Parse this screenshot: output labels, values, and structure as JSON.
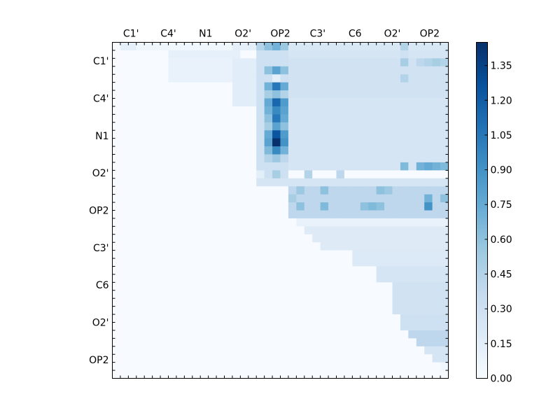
{
  "chart_data": {
    "type": "heatmap",
    "title": "",
    "xlabel": "",
    "ylabel": "",
    "n_cells": 42,
    "x_tick_labels": [
      "C1'",
      "C4'",
      "N1",
      "O2'",
      "OP2",
      "C3'",
      "C6",
      "O2'",
      "OP2"
    ],
    "y_tick_labels": [
      "C1'",
      "C4'",
      "N1",
      "O2'",
      "OP2",
      "C3'",
      "C6",
      "O2'",
      "OP2"
    ],
    "colorbar": {
      "min": 0.0,
      "max": 1.45,
      "ticks": [
        "0.00",
        "0.15",
        "0.30",
        "0.45",
        "0.60",
        "0.75",
        "0.90",
        "1.05",
        "1.20",
        "1.35"
      ],
      "colormap": "Blues",
      "stops": [
        "#f7fbff",
        "#deebf7",
        "#c6dbef",
        "#9ecae1",
        "#6baed6",
        "#4292c6",
        "#2171b5",
        "#08519c",
        "#08306b"
      ]
    },
    "blocks": [
      {
        "rows": [
          0,
          1
        ],
        "cols": [
          1,
          3
        ],
        "value": 0.12
      },
      {
        "rows": [
          0,
          1
        ],
        "cols": [
          3,
          7
        ],
        "value": 0.06
      },
      {
        "rows": [
          0,
          3
        ],
        "cols": [
          7,
          16
        ],
        "value": 0.05
      },
      {
        "rows": [
          0,
          1
        ],
        "cols": [
          15,
          18
        ],
        "value": 0.14
      },
      {
        "rows": [
          1,
          2
        ],
        "cols": [
          7,
          16
        ],
        "value": 0.12
      },
      {
        "rows": [
          2,
          5
        ],
        "cols": [
          7,
          16
        ],
        "value": 0.1
      },
      {
        "rows": [
          2,
          8
        ],
        "cols": [
          15,
          18
        ],
        "value": 0.16
      },
      {
        "rows": [
          0,
          16
        ],
        "cols": [
          18,
          22
        ],
        "value": 0.3
      },
      {
        "rows": [
          0,
          1
        ],
        "cols": [
          18,
          22
        ],
        "value": 0.45
      },
      {
        "rows": [
          0,
          1
        ],
        "cols": [
          22,
          42
        ],
        "value": 0.22
      },
      {
        "rows": [
          1,
          2
        ],
        "cols": [
          22,
          42
        ],
        "value": 0.25
      },
      {
        "rows": [
          2,
          7
        ],
        "cols": [
          22,
          42
        ],
        "value": 0.28
      },
      {
        "rows": [
          7,
          16
        ],
        "cols": [
          22,
          42
        ],
        "value": 0.25
      },
      {
        "rows": [
          15,
          17
        ],
        "cols": [
          18,
          22
        ],
        "value": 0.3
      },
      {
        "rows": [
          17,
          18
        ],
        "cols": [
          18,
          42
        ],
        "value": 0.25
      },
      {
        "rows": [
          18,
          22
        ],
        "cols": [
          22,
          42
        ],
        "value": 0.4
      },
      {
        "rows": [
          22,
          23
        ],
        "cols": [
          22,
          42
        ],
        "value": 0.1
      },
      {
        "rows": [
          23,
          26
        ],
        "cols": [
          24,
          42
        ],
        "value": 0.18
      },
      {
        "rows": [
          26,
          28
        ],
        "cols": [
          30,
          42
        ],
        "value": 0.2
      },
      {
        "rows": [
          28,
          30
        ],
        "cols": [
          33,
          42
        ],
        "value": 0.25
      },
      {
        "rows": [
          30,
          34
        ],
        "cols": [
          35,
          42
        ],
        "value": 0.28
      },
      {
        "rows": [
          34,
          36
        ],
        "cols": [
          36,
          42
        ],
        "value": 0.3
      },
      {
        "rows": [
          36,
          38
        ],
        "cols": [
          37,
          42
        ],
        "value": 0.4
      },
      {
        "rows": [
          38,
          40
        ],
        "cols": [
          38,
          42
        ],
        "value": 0.25
      },
      {
        "rows": [
          40,
          42
        ],
        "cols": [
          40,
          42
        ],
        "value": 0.05
      }
    ],
    "cells": [
      {
        "r": 0,
        "c": 19,
        "v": 0.6
      },
      {
        "r": 0,
        "c": 20,
        "v": 0.7
      },
      {
        "r": 0,
        "c": 21,
        "v": 0.55
      },
      {
        "r": 0,
        "c": 36,
        "v": 0.45
      },
      {
        "r": 1,
        "c": 36,
        "v": 0.3
      },
      {
        "r": 2,
        "c": 36,
        "v": 0.5
      },
      {
        "r": 2,
        "c": 38,
        "v": 0.4
      },
      {
        "r": 2,
        "c": 39,
        "v": 0.45
      },
      {
        "r": 2,
        "c": 40,
        "v": 0.5
      },
      {
        "r": 2,
        "c": 41,
        "v": 0.45
      },
      {
        "r": 3,
        "c": 19,
        "v": 0.6
      },
      {
        "r": 3,
        "c": 20,
        "v": 0.8
      },
      {
        "r": 3,
        "c": 21,
        "v": 0.6
      },
      {
        "r": 4,
        "c": 20,
        "v": 0.15
      },
      {
        "r": 4,
        "c": 36,
        "v": 0.45
      },
      {
        "r": 5,
        "c": 19,
        "v": 0.7
      },
      {
        "r": 5,
        "c": 20,
        "v": 1.05
      },
      {
        "r": 5,
        "c": 21,
        "v": 0.75
      },
      {
        "r": 6,
        "c": 19,
        "v": 0.5
      },
      {
        "r": 6,
        "c": 20,
        "v": 0.6
      },
      {
        "r": 6,
        "c": 21,
        "v": 0.45
      },
      {
        "r": 7,
        "c": 19,
        "v": 0.75
      },
      {
        "r": 7,
        "c": 20,
        "v": 1.15
      },
      {
        "r": 7,
        "c": 21,
        "v": 0.85
      },
      {
        "r": 8,
        "c": 19,
        "v": 0.7
      },
      {
        "r": 8,
        "c": 20,
        "v": 0.95
      },
      {
        "r": 8,
        "c": 21,
        "v": 0.8
      },
      {
        "r": 9,
        "c": 19,
        "v": 0.6
      },
      {
        "r": 9,
        "c": 20,
        "v": 1.05
      },
      {
        "r": 9,
        "c": 21,
        "v": 0.75
      },
      {
        "r": 10,
        "c": 19,
        "v": 0.5
      },
      {
        "r": 10,
        "c": 20,
        "v": 0.8
      },
      {
        "r": 10,
        "c": 21,
        "v": 0.6
      },
      {
        "r": 11,
        "c": 19,
        "v": 0.75
      },
      {
        "r": 11,
        "c": 20,
        "v": 1.25
      },
      {
        "r": 11,
        "c": 21,
        "v": 0.85
      },
      {
        "r": 12,
        "c": 19,
        "v": 0.8
      },
      {
        "r": 12,
        "c": 20,
        "v": 1.45
      },
      {
        "r": 12,
        "c": 21,
        "v": 0.9
      },
      {
        "r": 13,
        "c": 19,
        "v": 0.65
      },
      {
        "r": 13,
        "c": 20,
        "v": 0.95
      },
      {
        "r": 13,
        "c": 21,
        "v": 0.7
      },
      {
        "r": 14,
        "c": 19,
        "v": 0.45
      },
      {
        "r": 14,
        "c": 20,
        "v": 0.55
      },
      {
        "r": 14,
        "c": 21,
        "v": 0.4
      },
      {
        "r": 15,
        "c": 36,
        "v": 0.65
      },
      {
        "r": 15,
        "c": 38,
        "v": 0.7
      },
      {
        "r": 15,
        "c": 39,
        "v": 0.75
      },
      {
        "r": 15,
        "c": 40,
        "v": 0.7
      },
      {
        "r": 15,
        "c": 41,
        "v": 0.65
      },
      {
        "r": 16,
        "c": 18,
        "v": 0.15
      },
      {
        "r": 16,
        "c": 20,
        "v": 0.5
      },
      {
        "r": 16,
        "c": 24,
        "v": 0.45
      },
      {
        "r": 16,
        "c": 28,
        "v": 0.4
      },
      {
        "r": 18,
        "c": 23,
        "v": 0.55
      },
      {
        "r": 18,
        "c": 26,
        "v": 0.6
      },
      {
        "r": 18,
        "c": 33,
        "v": 0.6
      },
      {
        "r": 18,
        "c": 34,
        "v": 0.55
      },
      {
        "r": 19,
        "c": 22,
        "v": 0.5
      },
      {
        "r": 19,
        "c": 39,
        "v": 0.7
      },
      {
        "r": 19,
        "c": 41,
        "v": 0.6
      },
      {
        "r": 20,
        "c": 23,
        "v": 0.6
      },
      {
        "r": 20,
        "c": 26,
        "v": 0.65
      },
      {
        "r": 20,
        "c": 31,
        "v": 0.6
      },
      {
        "r": 20,
        "c": 32,
        "v": 0.65
      },
      {
        "r": 20,
        "c": 33,
        "v": 0.6
      },
      {
        "r": 20,
        "c": 39,
        "v": 0.9
      }
    ]
  }
}
